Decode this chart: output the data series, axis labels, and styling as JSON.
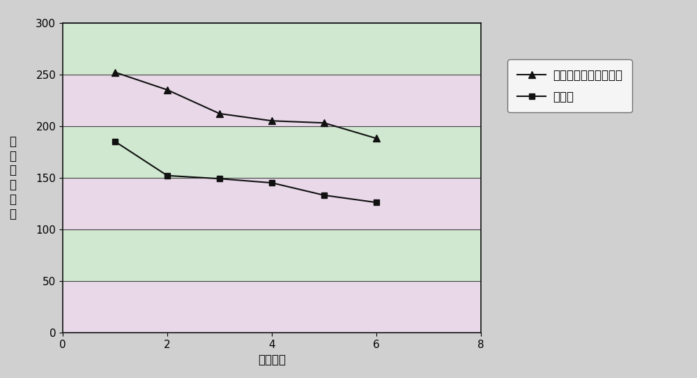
{
  "series1_x": [
    1,
    2,
    3,
    4,
    5,
    6
  ],
  "series1_y": [
    252,
    235,
    212,
    205,
    203,
    188
  ],
  "series1_label": "加固定化增酰醂的工艺",
  "series2_x": [
    1,
    2,
    3,
    4,
    5,
    6
  ],
  "series2_y": [
    185,
    152,
    149,
    145,
    133,
    126
  ],
  "series2_label": "对照组",
  "xlabel": "流酒时间",
  "ylabel": "己酸乙酰含量",
  "xlim": [
    0,
    8
  ],
  "ylim": [
    0,
    300
  ],
  "xticks": [
    0,
    2,
    4,
    6,
    8
  ],
  "yticks": [
    0,
    50,
    100,
    150,
    200,
    250,
    300
  ],
  "band_colors": [
    "#e8d8e8",
    "#d0e8d0"
  ],
  "fig_bg_color": "#c8c8c8",
  "outer_bg_color": "#d0d0d0",
  "line_color": "#111111",
  "grid_color": "#444444",
  "legend_bg_color": "#ffffff",
  "label_fontsize": 12,
  "tick_fontsize": 11
}
